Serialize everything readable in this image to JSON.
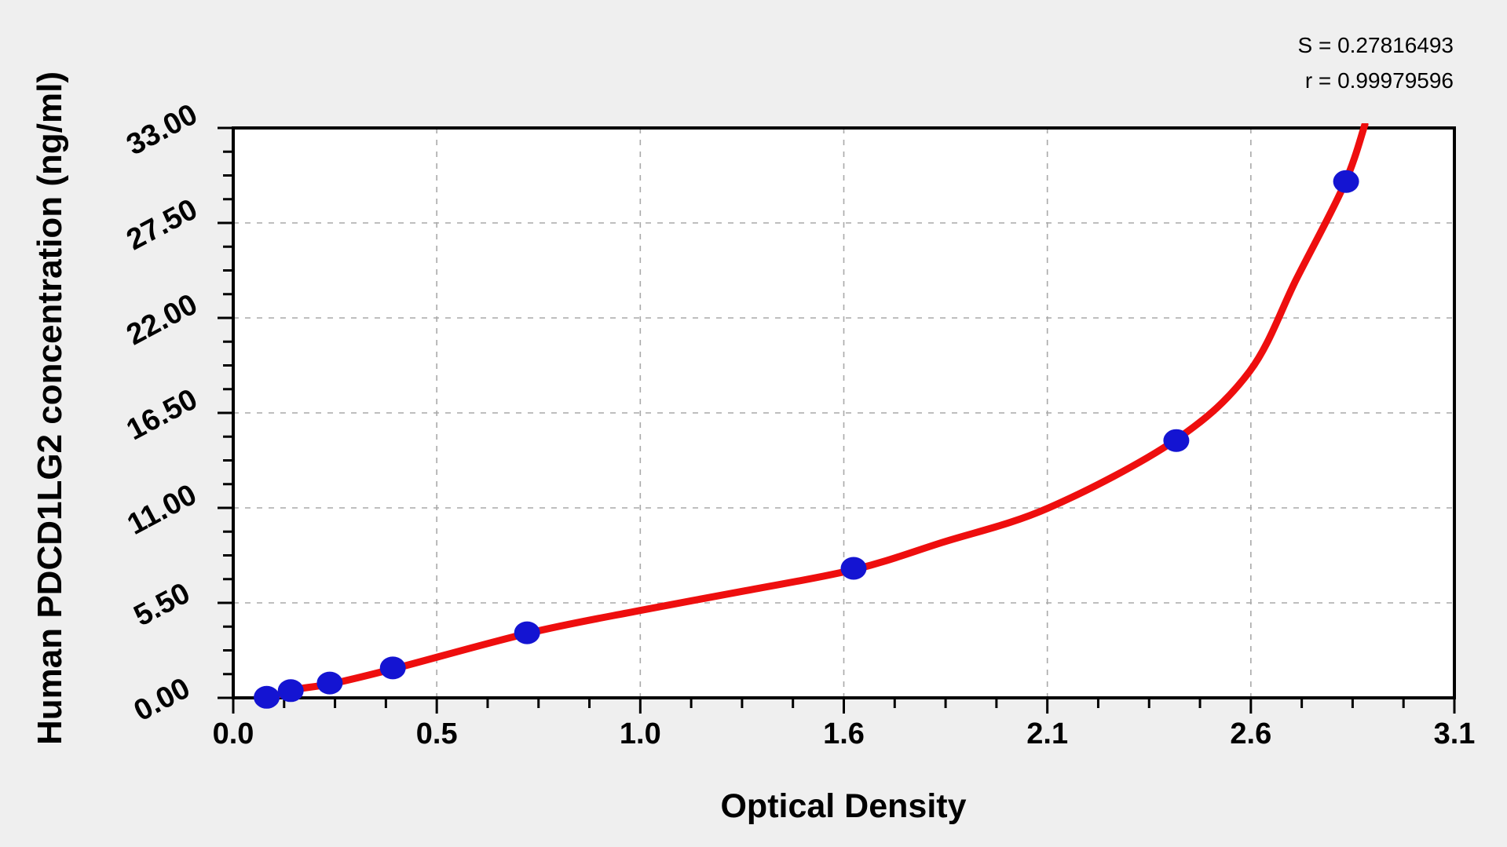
{
  "annotations": {
    "line1": "S = 0.27816493",
    "line2": "r = 0.99979596"
  },
  "chart_data": {
    "type": "scatter",
    "title": "",
    "xlabel": "Optical Density",
    "ylabel": "Human PDCD1LG2 concentration (ng/ml)",
    "xlim": [
      0,
      3.1
    ],
    "ylim": [
      0,
      33
    ],
    "x_tick_labels": [
      "0.0",
      "0.5",
      "1.0",
      "1.6",
      "2.1",
      "2.6",
      "3.1"
    ],
    "y_tick_labels": [
      "0.00",
      "5.50",
      "11.00",
      "16.50",
      "22.00",
      "27.50",
      "33.00"
    ],
    "minor_ticks_per_major_interval": 4,
    "grid": "dashed-on-major-ticks",
    "legend": "none",
    "stats": {
      "S": "0.27816493",
      "r": "0.99979596"
    },
    "series": [
      {
        "name": "standard-data-points",
        "type": "scatter",
        "marker": "ellipse",
        "color": "#1414d2",
        "points": [
          [
            0.085,
            0.03
          ],
          [
            0.146,
            0.42
          ],
          [
            0.245,
            0.86
          ],
          [
            0.405,
            1.73
          ],
          [
            0.746,
            3.77
          ],
          [
            1.575,
            7.5
          ],
          [
            2.394,
            14.9
          ],
          [
            2.825,
            29.9
          ]
        ]
      },
      {
        "name": "fitted-standard-curve",
        "type": "line",
        "color": "#ee0e0e",
        "points": [
          [
            0.085,
            -0.1
          ],
          [
            0.15,
            0.45
          ],
          [
            0.25,
            0.82
          ],
          [
            0.41,
            1.7
          ],
          [
            0.75,
            3.75
          ],
          [
            1.03,
            5.05
          ],
          [
            1.3,
            6.2
          ],
          [
            1.58,
            7.45
          ],
          [
            1.8,
            9.0
          ],
          [
            2.07,
            11.0
          ],
          [
            2.39,
            14.9
          ],
          [
            2.58,
            18.9
          ],
          [
            2.7,
            24.3
          ],
          [
            2.82,
            29.7
          ],
          [
            2.873,
            33.2
          ]
        ]
      }
    ]
  },
  "colors": {
    "figure_background": "#efefef",
    "plot_background": "#ffffff",
    "axis": "#000000",
    "gridline": "#a9a9a9",
    "point_blue": "#1414d2",
    "curve_red": "#ee0e0e",
    "text": "#000000"
  }
}
